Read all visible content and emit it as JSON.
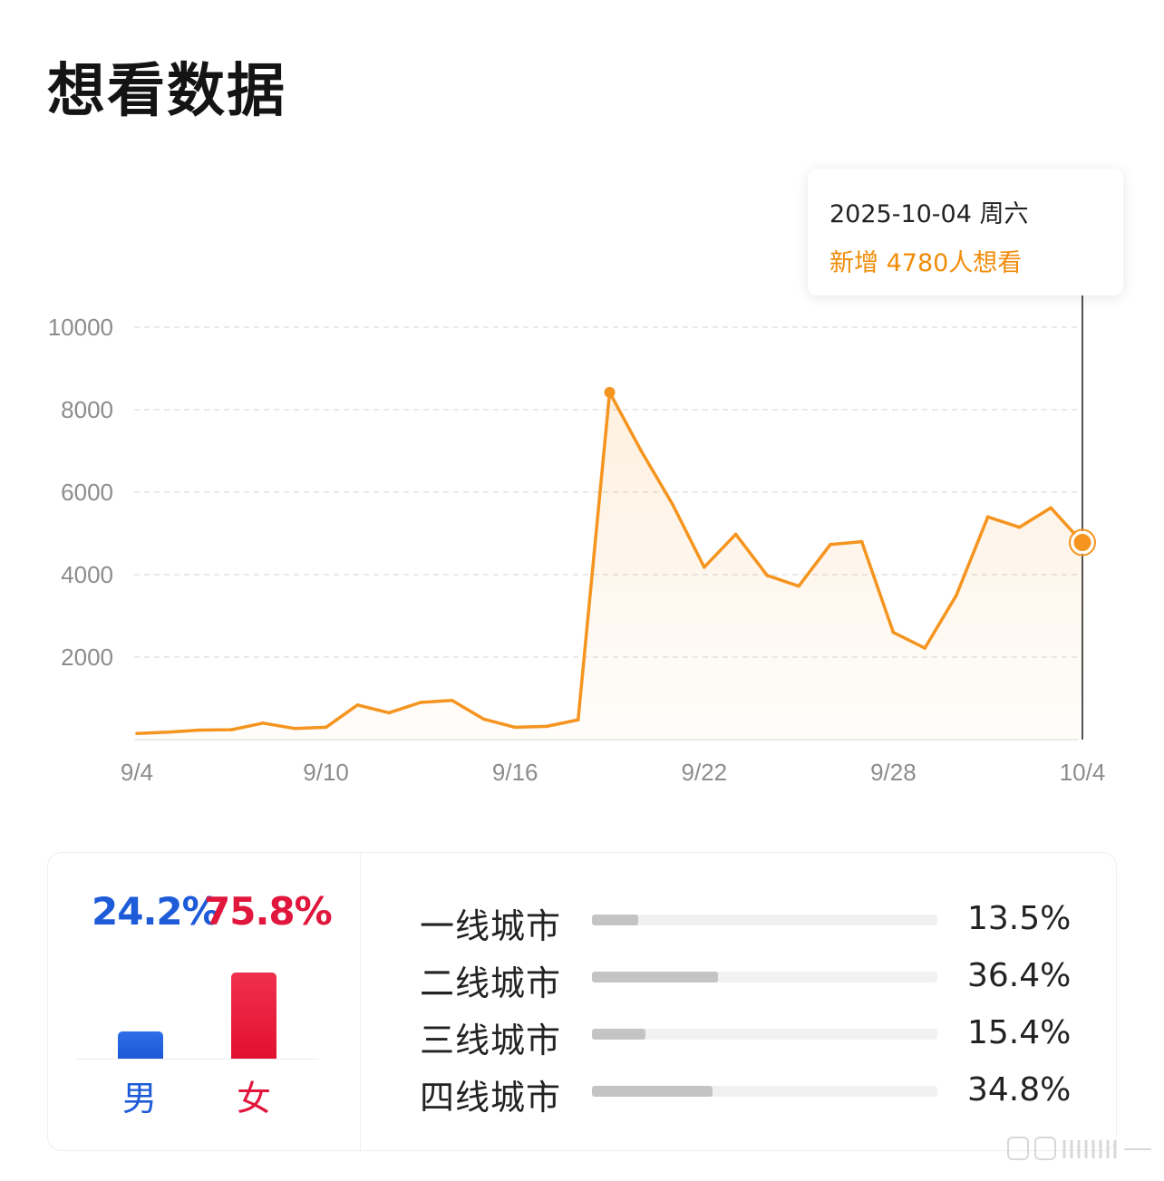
{
  "page": {
    "title": "想看数据"
  },
  "tooltip": {
    "date": "2025-10-04 周六",
    "value_text": "新增 4780人想看"
  },
  "colors": {
    "line": "#f5941e",
    "male": "#1d5bd8",
    "female": "#e1163c",
    "bar_track": "#f1f1f1",
    "bar_fill": "#c4c4c4"
  },
  "chart_data": {
    "type": "line",
    "title": "",
    "xlabel": "",
    "ylabel": "",
    "x": [
      "9/4",
      "9/5",
      "9/6",
      "9/7",
      "9/8",
      "9/9",
      "9/10",
      "9/11",
      "9/12",
      "9/13",
      "9/14",
      "9/15",
      "9/16",
      "9/17",
      "9/18",
      "9/19",
      "9/20",
      "9/21",
      "9/22",
      "9/23",
      "9/24",
      "9/25",
      "9/26",
      "9/27",
      "9/28",
      "9/29",
      "9/30",
      "10/1",
      "10/2",
      "10/3",
      "10/4"
    ],
    "series": [
      {
        "values": [
          150,
          180,
          230,
          240,
          400,
          270,
          300,
          840,
          650,
          900,
          950,
          500,
          300,
          320,
          480,
          8420,
          7000,
          5700,
          4180,
          4980,
          3980,
          3720,
          4730,
          4800,
          2600,
          2220,
          3500,
          5400,
          5150,
          5620,
          4780
        ]
      }
    ],
    "x_tick_labels": [
      "9/4",
      "9/10",
      "9/16",
      "9/22",
      "9/28",
      "10/4"
    ],
    "y_ticks": [
      2000,
      4000,
      6000,
      8000,
      10000
    ],
    "ylim": [
      0,
      10000
    ],
    "grid": true,
    "highlight": {
      "peak_index": 15,
      "selected_index": 30
    }
  },
  "gender": {
    "male": {
      "label": "男",
      "percent": "24.2%",
      "value": 24.2
    },
    "female": {
      "label": "女",
      "percent": "75.8%",
      "value": 75.8
    }
  },
  "city_tiers": [
    {
      "name": "一线城市",
      "percent": "13.5%",
      "value": 13.5
    },
    {
      "name": "二线城市",
      "percent": "36.4%",
      "value": 36.4
    },
    {
      "name": "三线城市",
      "percent": "15.4%",
      "value": 15.4
    },
    {
      "name": "四线城市",
      "percent": "34.8%",
      "value": 34.8
    }
  ]
}
